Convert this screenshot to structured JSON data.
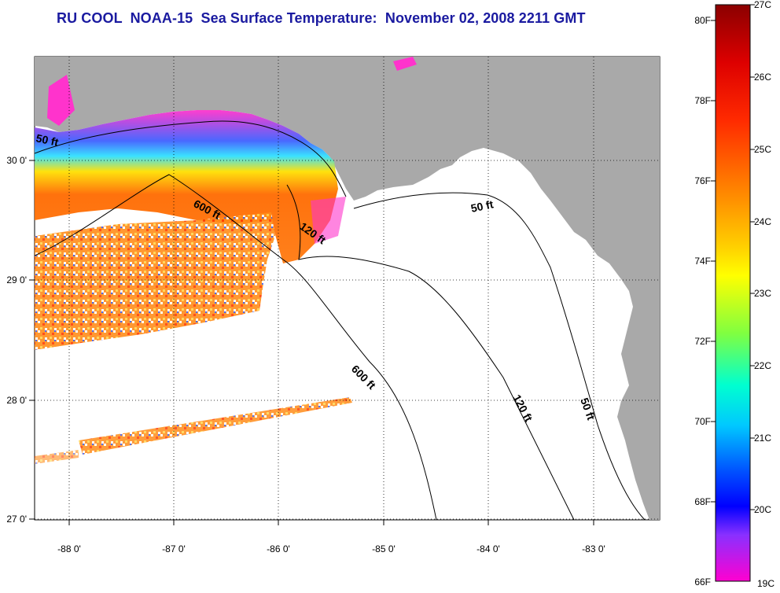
{
  "title": "RU COOL  NOAA-15  Sea Surface Temperature:  November 02, 2008 2211 GMT",
  "map": {
    "x_ticks": [
      "-88 0'",
      "-87 0'",
      "-86 0'",
      "-85 0'",
      "-84 0'",
      "-83 0'"
    ],
    "y_ticks": [
      "30 0'",
      "29 0'",
      "28 0'",
      "27 0'"
    ],
    "x_range": [
      -88.3,
      -82.4
    ],
    "y_range": [
      26.98,
      30.87
    ],
    "land_color": "#a9a9a9",
    "ocean_color": "#ffffff",
    "gridlines": "dotted",
    "contour_labels": [
      {
        "text": "50 ft"
      },
      {
        "text": "600 ft"
      },
      {
        "text": "120 ft"
      },
      {
        "text": "50 ft"
      },
      {
        "text": "600 ft"
      },
      {
        "text": "120 ft"
      },
      {
        "text": "50 ft"
      }
    ]
  },
  "colorbar": {
    "f_labels": [
      "80F",
      "78F",
      "76F",
      "74F",
      "72F",
      "70F",
      "68F",
      "66F"
    ],
    "c_labels": [
      "27C",
      "26C",
      "25C",
      "24C",
      "23C",
      "22C",
      "21C",
      "20C",
      "19C"
    ],
    "colors": [
      "#8b0000",
      "#ff0000",
      "#ff6a00",
      "#ffb000",
      "#ffff00",
      "#80ff00",
      "#00ff80",
      "#00ffff",
      "#0080ff",
      "#0000ff",
      "#8000ff",
      "#ff00ff"
    ]
  }
}
